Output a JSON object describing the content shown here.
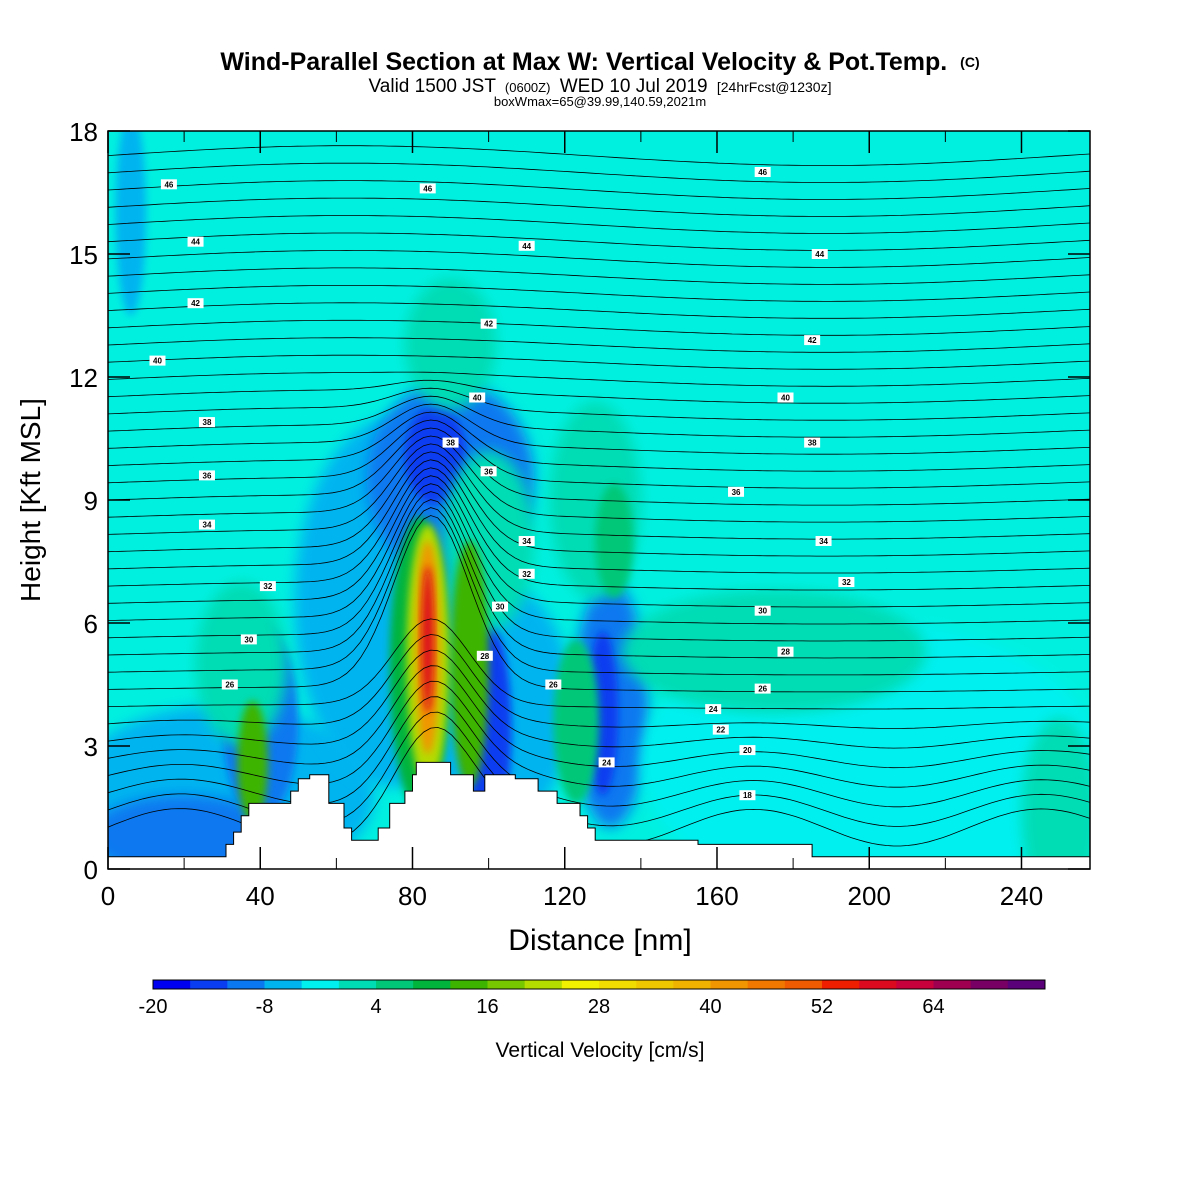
{
  "chart_data": {
    "type": "heatmap",
    "title": "Wind-Parallel Section at Max W: Vertical Velocity & Pot.Temp.",
    "title_mark": "(C)",
    "subtitle_parts": [
      "Valid 1500 JST",
      "(0600Z)",
      "WED 10 Jul 2019",
      "[24hrFcst@1230z]"
    ],
    "subtitle2": "boxWmax=65@39.99,140.59,2021m",
    "xlabel": "Distance [nm]",
    "ylabel": "Height [Kft MSL]",
    "xlim": [
      0,
      258
    ],
    "ylim": [
      0,
      18
    ],
    "x_ticks": [
      0,
      40,
      80,
      120,
      160,
      200,
      240
    ],
    "y_ticks": [
      0,
      3,
      6,
      9,
      12,
      15,
      18
    ],
    "colorbar": {
      "label": "Vertical Velocity [cm/s]",
      "min": -20,
      "step": 4,
      "tick_labels": [
        "-20",
        "-8",
        "4",
        "16",
        "28",
        "40",
        "52",
        "64"
      ],
      "colors": [
        "#0000f0",
        "#0a3cf0",
        "#0a78f0",
        "#00b4f0",
        "#00f0f0",
        "#00dcb4",
        "#00c878",
        "#00b43c",
        "#3cb400",
        "#78c800",
        "#b4dc00",
        "#f0f000",
        "#f0dc00",
        "#f0c800",
        "#f0b400",
        "#f09600",
        "#f07800",
        "#f05a00",
        "#f01e00",
        "#dc0a1e",
        "#c8003c",
        "#a00050",
        "#780064",
        "#5a0078"
      ]
    },
    "terrain": [
      [
        0,
        0.3
      ],
      [
        31,
        0.3
      ],
      [
        31,
        0.6
      ],
      [
        33,
        0.6
      ],
      [
        33,
        0.9
      ],
      [
        35,
        0.9
      ],
      [
        35,
        1.3
      ],
      [
        37,
        1.3
      ],
      [
        37,
        1.6
      ],
      [
        48,
        1.6
      ],
      [
        48,
        1.9
      ],
      [
        50,
        1.9
      ],
      [
        50,
        2.2
      ],
      [
        53,
        2.2
      ],
      [
        53,
        2.3
      ],
      [
        58,
        2.3
      ],
      [
        58,
        1.6
      ],
      [
        62,
        1.6
      ],
      [
        62,
        1.0
      ],
      [
        64,
        1.0
      ],
      [
        64,
        0.7
      ],
      [
        71,
        0.7
      ],
      [
        71,
        1.0
      ],
      [
        74,
        1.0
      ],
      [
        74,
        1.6
      ],
      [
        78,
        1.6
      ],
      [
        78,
        1.9
      ],
      [
        80,
        1.9
      ],
      [
        80,
        2.3
      ],
      [
        81,
        2.3
      ],
      [
        81,
        2.6
      ],
      [
        90,
        2.6
      ],
      [
        90,
        2.3
      ],
      [
        96,
        2.3
      ],
      [
        96,
        1.9
      ],
      [
        99,
        1.9
      ],
      [
        99,
        2.3
      ],
      [
        107,
        2.3
      ],
      [
        107,
        2.2
      ],
      [
        113,
        2.2
      ],
      [
        113,
        1.9
      ],
      [
        118,
        1.9
      ],
      [
        118,
        1.6
      ],
      [
        124,
        1.6
      ],
      [
        124,
        1.3
      ],
      [
        126,
        1.3
      ],
      [
        126,
        1.0
      ],
      [
        128,
        1.0
      ],
      [
        128,
        0.7
      ],
      [
        155,
        0.7
      ],
      [
        155,
        0.6
      ],
      [
        185,
        0.6
      ],
      [
        185,
        0.3
      ],
      [
        258,
        0.3
      ]
    ],
    "theta_labels": [
      {
        "text": "46",
        "x": 16,
        "y": 16.7
      },
      {
        "text": "46",
        "x": 84,
        "y": 16.6
      },
      {
        "text": "46",
        "x": 172,
        "y": 17.0
      },
      {
        "text": "44",
        "x": 23,
        "y": 15.3
      },
      {
        "text": "44",
        "x": 110,
        "y": 15.2
      },
      {
        "text": "44",
        "x": 187,
        "y": 15.0
      },
      {
        "text": "42",
        "x": 23,
        "y": 13.8
      },
      {
        "text": "42",
        "x": 100,
        "y": 13.3
      },
      {
        "text": "42",
        "x": 185,
        "y": 12.9
      },
      {
        "text": "40",
        "x": 13,
        "y": 12.4
      },
      {
        "text": "40",
        "x": 97,
        "y": 11.5
      },
      {
        "text": "40",
        "x": 178,
        "y": 11.5
      },
      {
        "text": "38",
        "x": 26,
        "y": 10.9
      },
      {
        "text": "38",
        "x": 90,
        "y": 10.4
      },
      {
        "text": "38",
        "x": 185,
        "y": 10.4
      },
      {
        "text": "36",
        "x": 26,
        "y": 9.6
      },
      {
        "text": "36",
        "x": 100,
        "y": 9.7
      },
      {
        "text": "36",
        "x": 165,
        "y": 9.2
      },
      {
        "text": "34",
        "x": 26,
        "y": 8.4
      },
      {
        "text": "34",
        "x": 110,
        "y": 8.0
      },
      {
        "text": "34",
        "x": 188,
        "y": 8.0
      },
      {
        "text": "32",
        "x": 42,
        "y": 6.9
      },
      {
        "text": "32",
        "x": 110,
        "y": 7.2
      },
      {
        "text": "32",
        "x": 194,
        "y": 7.0
      },
      {
        "text": "30",
        "x": 37,
        "y": 5.6
      },
      {
        "text": "30",
        "x": 103,
        "y": 6.4
      },
      {
        "text": "30",
        "x": 172,
        "y": 6.3
      },
      {
        "text": "28",
        "x": 99,
        "y": 5.2
      },
      {
        "text": "28",
        "x": 178,
        "y": 5.3
      },
      {
        "text": "26",
        "x": 32,
        "y": 4.5
      },
      {
        "text": "26",
        "x": 117,
        "y": 4.5
      },
      {
        "text": "26",
        "x": 172,
        "y": 4.4
      },
      {
        "text": "24",
        "x": 159,
        "y": 3.9
      },
      {
        "text": "24",
        "x": 131,
        "y": 2.6
      },
      {
        "text": "22",
        "x": 161,
        "y": 3.4
      },
      {
        "text": "20",
        "x": 168,
        "y": 2.9
      },
      {
        "text": "18",
        "x": 168,
        "y": 1.8
      }
    ]
  }
}
